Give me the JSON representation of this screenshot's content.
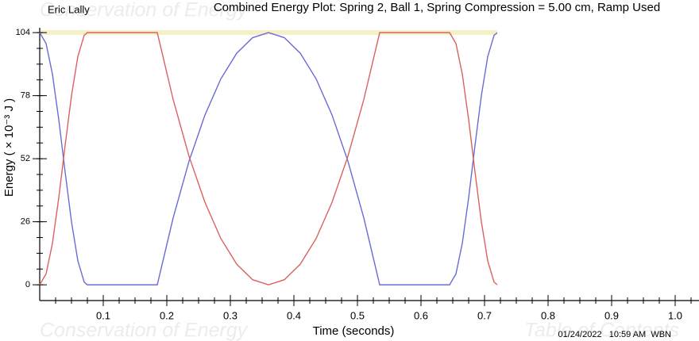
{
  "chart_data": {
    "type": "line",
    "title": "Combined Energy Plot: Spring 2, Ball 1, Spring Compression = 5.00 cm, Ramp Used",
    "author": "Eric Lally",
    "timestamp": "01/24/2022   10:59 AM  WBN",
    "watermark_left": "Conservation of Energy",
    "watermark_right": "Table of Contents",
    "x_label": "Time (seconds)",
    "y_label": "Energy ( × 10⁻³ J )",
    "x": [
      0,
      0.01,
      0.02,
      0.03,
      0.04,
      0.05,
      0.06,
      0.07,
      0.075,
      0.185,
      0.21,
      0.235,
      0.26,
      0.285,
      0.31,
      0.335,
      0.36,
      0.385,
      0.41,
      0.435,
      0.46,
      0.485,
      0.51,
      0.535,
      0.645,
      0.655,
      0.665,
      0.675,
      0.685,
      0.695,
      0.705,
      0.715,
      0.72
    ],
    "series": [
      {
        "color": "#6a6ad8",
        "values": [
          104,
          99.5,
          86.9,
          68.1,
          46.5,
          26,
          9.9,
          1.1,
          0,
          0,
          27.6,
          51,
          70,
          84.9,
          95.5,
          101.9,
          104,
          101.9,
          95.5,
          84.9,
          70,
          51,
          27.6,
          0,
          0,
          4.5,
          17.1,
          35.9,
          57.5,
          78,
          94.1,
          102.9,
          104
        ]
      },
      {
        "color": "#d9625e",
        "values": [
          0,
          4.5,
          17.1,
          35.9,
          57.5,
          78,
          94.1,
          102.9,
          104,
          104,
          76.4,
          53,
          34,
          19.1,
          8.5,
          2.1,
          0,
          2.1,
          8.5,
          19.1,
          34,
          53,
          76.4,
          104,
          104,
          99.5,
          86.9,
          68.1,
          46.5,
          26,
          9.9,
          1.1,
          0
        ]
      }
    ],
    "xlim": [
      0,
      1.0375
    ],
    "ylim": [
      -6.5,
      106
    ],
    "xticks": [
      0.1,
      0.2,
      0.3,
      0.4,
      0.5,
      0.6,
      0.7,
      0.8,
      0.9,
      {
        "value": 1,
        "label": "1.0"
      }
    ],
    "yticks": [
      0,
      26,
      52,
      78,
      104
    ],
    "x_minor_step": 0.025,
    "y_minor_step": 6.5,
    "grid": false
  }
}
